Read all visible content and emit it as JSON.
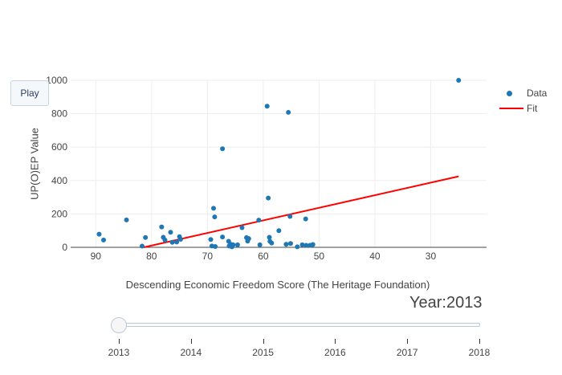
{
  "chart_data": {
    "type": "scatter",
    "xlabel": "Descending Economic Freedom Score (The Heritage Foundation)",
    "ylabel": "UP(O)EP Value",
    "x_reversed": true,
    "xlim": [
      94.5,
      20
    ],
    "ylim": [
      0,
      1000
    ],
    "x_ticks": [
      90,
      80,
      70,
      60,
      50,
      40,
      30
    ],
    "y_ticks": [
      0,
      200,
      400,
      600,
      800,
      1000
    ],
    "grid": true,
    "legend_position": "top-right",
    "series": [
      {
        "name": "Data",
        "color": "#1f77b4",
        "points": [
          [
            89.4,
            79
          ],
          [
            88.6,
            44
          ],
          [
            84.5,
            164
          ],
          [
            81.7,
            7
          ],
          [
            81.1,
            59
          ],
          [
            78.2,
            122
          ],
          [
            77.9,
            60
          ],
          [
            77.6,
            43
          ],
          [
            76.6,
            90
          ],
          [
            76.3,
            30
          ],
          [
            75.5,
            32
          ],
          [
            75.0,
            64
          ],
          [
            74.8,
            48
          ],
          [
            69.4,
            47
          ],
          [
            69.2,
            8
          ],
          [
            68.9,
            234
          ],
          [
            68.7,
            182
          ],
          [
            68.6,
            5
          ],
          [
            67.3,
            590
          ],
          [
            67.3,
            62
          ],
          [
            66.2,
            36
          ],
          [
            66.1,
            8
          ],
          [
            65.8,
            18
          ],
          [
            65.6,
            3
          ],
          [
            65.4,
            15
          ],
          [
            64.6,
            15
          ],
          [
            63.8,
            118
          ],
          [
            63.0,
            58
          ],
          [
            62.8,
            37
          ],
          [
            62.6,
            52
          ],
          [
            60.8,
            163
          ],
          [
            60.6,
            15
          ],
          [
            59.3,
            845
          ],
          [
            59.1,
            295
          ],
          [
            58.9,
            60
          ],
          [
            58.8,
            36
          ],
          [
            58.5,
            26
          ],
          [
            57.2,
            100
          ],
          [
            55.9,
            18
          ],
          [
            55.5,
            808
          ],
          [
            55.2,
            185
          ],
          [
            55.1,
            23
          ],
          [
            53.9,
            3
          ],
          [
            53.0,
            15
          ],
          [
            52.4,
            170
          ],
          [
            52.3,
            12
          ],
          [
            51.6,
            12
          ],
          [
            51.1,
            17
          ],
          [
            25.0,
            1000
          ]
        ]
      },
      {
        "name": "Fit",
        "color": "#ff0000",
        "line": [
          [
            81.4,
            0
          ],
          [
            25.0,
            425
          ]
        ]
      }
    ]
  },
  "controls": {
    "play_label": "Play",
    "year_prefix": "Year:",
    "year_value": "2013",
    "year_display": "Year:2013",
    "slider_years": [
      "2013",
      "2014",
      "2015",
      "2016",
      "2017",
      "2018"
    ],
    "slider_selected_index": 0
  }
}
